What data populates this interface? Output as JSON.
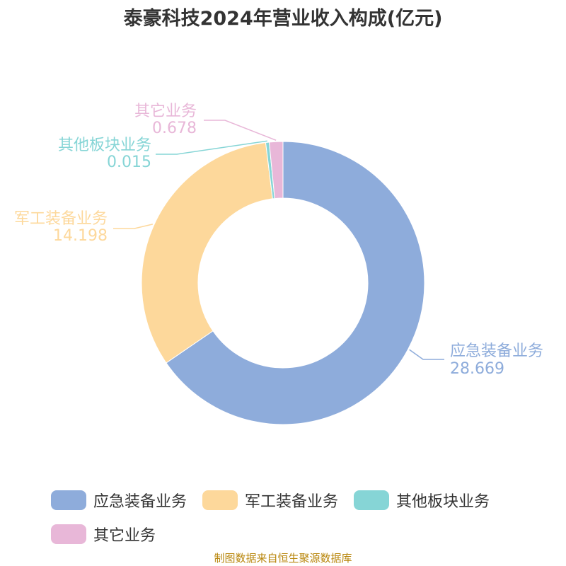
{
  "title": "泰豪科技2024年营业收入构成(亿元)",
  "source": "制图数据来自恒生聚源数据库",
  "chart_data": {
    "type": "pie",
    "title": "泰豪科技2024年营业收入构成(亿元)",
    "donut": true,
    "series": [
      {
        "name": "应急装备业务",
        "value": 28.669,
        "label": "28.669",
        "color": "#8eacdb"
      },
      {
        "name": "军工装备业务",
        "value": 14.198,
        "label": "14.198",
        "color": "#fdd89b"
      },
      {
        "name": "其他板块业务",
        "value": 0.015,
        "label": "0.015",
        "color": "#86d5d6"
      },
      {
        "name": "其它业务",
        "value": 0.678,
        "label": "0.678",
        "color": "#e8b7d8"
      }
    ],
    "legend_position": "bottom"
  }
}
